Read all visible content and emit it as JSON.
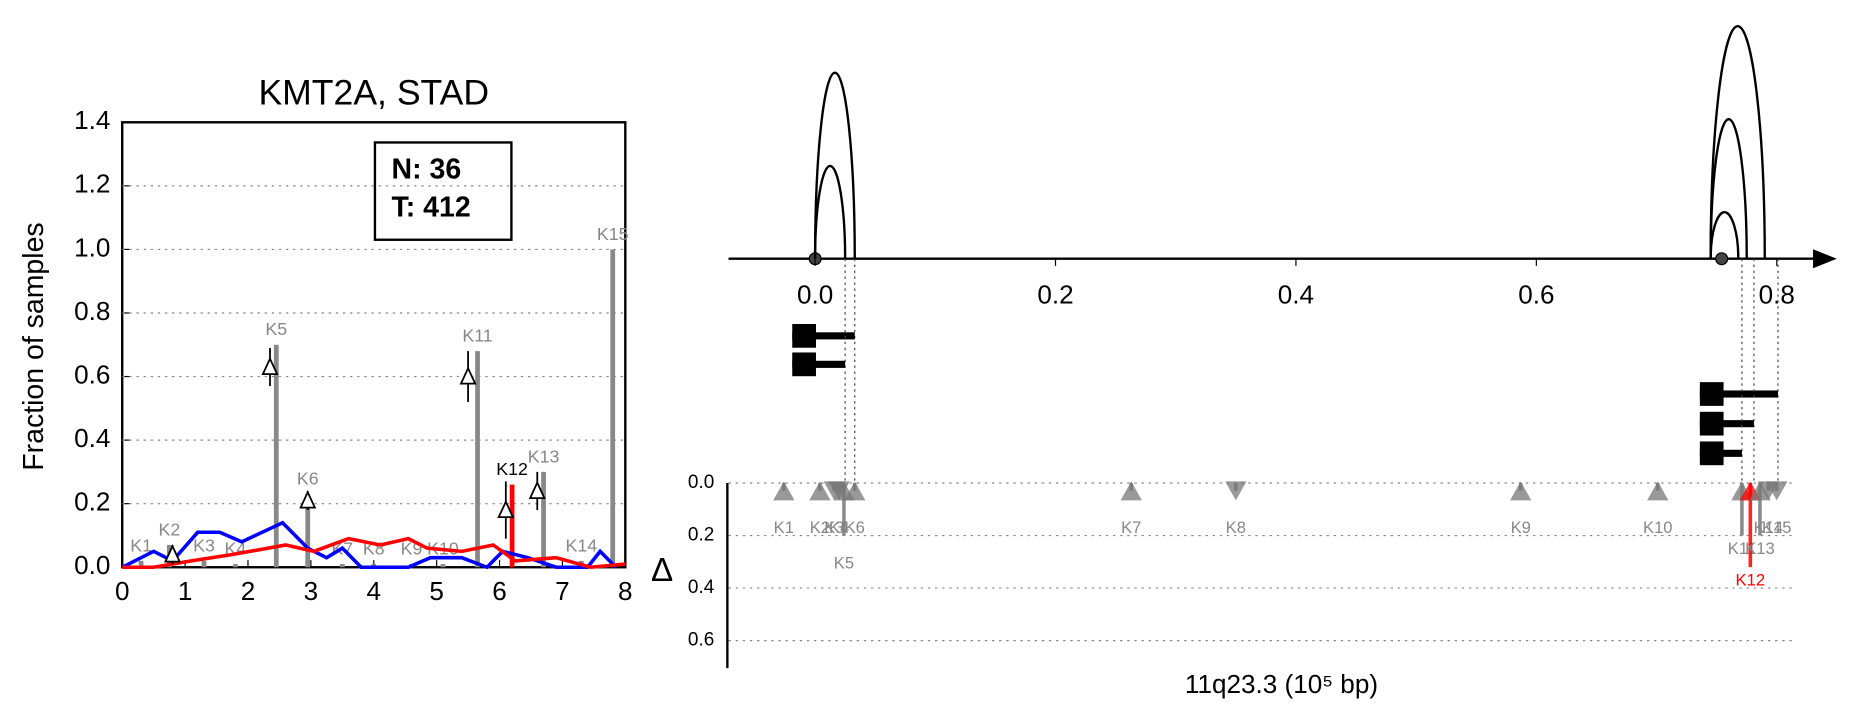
{
  "chart_data": [
    {
      "type": "bar",
      "title": "KMT2A, STAD",
      "ylabel": "Fraction of samples",
      "xlim": [
        0,
        8
      ],
      "xticks": [
        0,
        1,
        2,
        3,
        4,
        5,
        6,
        7,
        8
      ],
      "ylim": [
        0,
        1.4
      ],
      "yticks": [
        {
          "value": 0,
          "label": "0.0"
        },
        {
          "value": 0.2,
          "label": "0.2"
        },
        {
          "value": 0.4,
          "label": "0.4"
        },
        {
          "value": 0.6,
          "label": "0.6"
        },
        {
          "value": 0.8,
          "label": "0.8"
        },
        {
          "value": 1.0,
          "label": "1.0"
        },
        {
          "value": 1.2,
          "label": "1.2"
        },
        {
          "value": 1.4,
          "label": "1.4"
        }
      ],
      "grid": true,
      "annotations": [
        "N: 36",
        "T: 412"
      ],
      "labels": [
        "K1",
        "K2",
        "K3",
        "K4",
        "K5",
        "K6",
        "K7",
        "K8",
        "K9",
        "K10",
        "K11",
        "K12",
        "K13",
        "K14",
        "K15"
      ],
      "x": [
        0.3,
        0.75,
        1.3,
        1.8,
        2.45,
        2.95,
        3.5,
        4.0,
        4.6,
        5.1,
        5.65,
        6.2,
        6.7,
        7.3,
        7.8
      ],
      "values": [
        0.02,
        0.07,
        0.02,
        0.01,
        0.7,
        0.23,
        0.01,
        0.01,
        0.01,
        0.01,
        0.68,
        0.26,
        0.3,
        0.02,
        1.0
      ],
      "colors": [
        "#888",
        "#888",
        "#888",
        "#888",
        "#888",
        "#888",
        "#888",
        "#888",
        "#888",
        "#888",
        "#888",
        "#ff0000",
        "#888",
        "#888",
        "#888"
      ],
      "label_colors": [
        "#888",
        "#888",
        "#888",
        "#888",
        "#888",
        "#888",
        "#888",
        "#888",
        "#888",
        "#888",
        "#888",
        "#000",
        "#888",
        "#888",
        "#888"
      ],
      "markers": {
        "x": [
          0.8,
          2.35,
          2.95,
          5.5,
          6.1,
          6.6
        ],
        "values": [
          0.04,
          0.63,
          0.21,
          0.6,
          0.18,
          0.24
        ],
        "errors": [
          0.03,
          0.06,
          0.03,
          0.08,
          0.09,
          0.06
        ]
      },
      "series": [
        {
          "color": "#0000ff",
          "x": [
            0,
            0.5,
            0.8,
            1.2,
            1.55,
            1.9,
            2.55,
            2.95,
            3.25,
            3.5,
            3.8,
            4.55,
            4.9,
            5.4,
            5.8,
            6.05,
            6.45,
            6.9,
            7.4,
            7.6,
            7.85
          ],
          "values": [
            0,
            0.05,
            0.02,
            0.11,
            0.11,
            0.08,
            0.14,
            0.06,
            0.03,
            0.06,
            0,
            0,
            0.03,
            0.03,
            0,
            0.05,
            0.03,
            0,
            0,
            0.05,
            0
          ]
        },
        {
          "color": "#ff0000",
          "x": [
            0,
            0.5,
            1.1,
            1.75,
            2.6,
            3.05,
            3.6,
            4.1,
            4.55,
            4.85,
            5.4,
            5.9,
            6.25,
            6.9,
            7.45,
            8
          ],
          "values": [
            0,
            0,
            0.02,
            0.04,
            0.07,
            0.05,
            0.09,
            0.07,
            0.09,
            0.06,
            0.05,
            0.07,
            0.02,
            0.03,
            0,
            0.01
          ]
        }
      ]
    },
    {
      "type": "scatter",
      "xlabel": "11q23.3 (10⁵ bp)",
      "ylabel": "Δ",
      "xlim": [
        -0.072,
        0.842
      ],
      "xticks": [
        {
          "value": 0,
          "label": "0.0"
        },
        {
          "value": 0.2,
          "label": "0.2"
        },
        {
          "value": 0.4,
          "label": "0.4"
        },
        {
          "value": 0.6,
          "label": "0.6"
        },
        {
          "value": 0.8,
          "label": "0.8"
        }
      ],
      "ylim": [
        0,
        0.7
      ],
      "yticks": [
        {
          "value": 0,
          "label": "0.0"
        },
        {
          "value": 0.2,
          "label": "0.2"
        },
        {
          "value": 0.4,
          "label": "0.4"
        },
        {
          "value": 0.6,
          "label": "0.6"
        }
      ],
      "grid": true,
      "arcs": {
        "start": [
          0,
          0,
          0.745,
          0.745,
          0.745
        ],
        "end": [
          0.033,
          0.025,
          0.79,
          0.775,
          0.768
        ],
        "heights": [
          0.8,
          0.4,
          1.0,
          0.6,
          0.2
        ]
      },
      "transcripts": {
        "start": [
          -0.019,
          -0.019,
          0.736,
          0.736,
          0.736
        ],
        "end": [
          0.033,
          0.025,
          0.801,
          0.781,
          0.771
        ]
      },
      "labels": [
        "K1",
        "K2",
        "K3",
        "K4",
        "K5",
        "K6",
        "K7",
        "K8",
        "K9",
        "K10",
        "K11",
        "K12",
        "K13",
        "K14",
        "K15"
      ],
      "x": [
        -0.026,
        0.004,
        0.016,
        0.02,
        0.024,
        0.033,
        0.263,
        0.35,
        0.587,
        0.701,
        0.771,
        0.778,
        0.786,
        0.793,
        0.8
      ],
      "values": [
        0.03,
        0.03,
        0.03,
        0.03,
        0.2,
        0.03,
        0.03,
        0.03,
        0.03,
        0.03,
        0.2,
        0.32,
        0.2,
        0.03,
        0.03
      ],
      "direction": [
        "up",
        "up",
        "down",
        "down",
        "up",
        "up",
        "up",
        "down",
        "up",
        "up",
        "up",
        "up",
        "up",
        "down",
        "down"
      ],
      "colors": [
        "#777",
        "#777",
        "#777",
        "#777",
        "#777",
        "#777",
        "#777",
        "#777",
        "#777",
        "#777",
        "#777",
        "#ff0000",
        "#777",
        "#777",
        "#777"
      ]
    }
  ]
}
